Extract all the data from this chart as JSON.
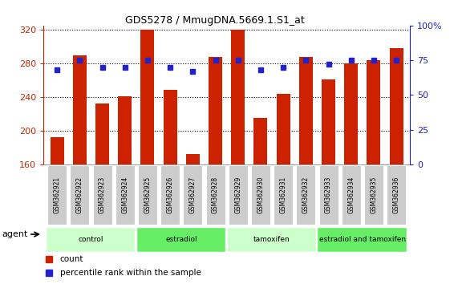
{
  "title": "GDS5278 / MmugDNA.5669.1.S1_at",
  "categories": [
    "GSM362921",
    "GSM362922",
    "GSM362923",
    "GSM362924",
    "GSM362925",
    "GSM362926",
    "GSM362927",
    "GSM362928",
    "GSM362929",
    "GSM362930",
    "GSM362931",
    "GSM362932",
    "GSM362933",
    "GSM362934",
    "GSM362935",
    "GSM362936"
  ],
  "count_values": [
    192,
    290,
    232,
    241,
    320,
    249,
    172,
    288,
    320,
    215,
    244,
    288,
    261,
    280,
    284,
    298
  ],
  "percentile_values": [
    68,
    75,
    70,
    70,
    75,
    70,
    67,
    75,
    75,
    68,
    70,
    75,
    72,
    75,
    75,
    75
  ],
  "ylim_left": [
    160,
    325
  ],
  "ylim_right": [
    0,
    100
  ],
  "yticks_left": [
    160,
    200,
    240,
    280,
    320
  ],
  "yticks_right": [
    0,
    25,
    50,
    75,
    100
  ],
  "bar_color": "#cc2200",
  "dot_color": "#2222cc",
  "groups": [
    {
      "label": "control",
      "start": 0,
      "end": 4,
      "color": "#ccffcc"
    },
    {
      "label": "estradiol",
      "start": 4,
      "end": 8,
      "color": "#66ee66"
    },
    {
      "label": "tamoxifen",
      "start": 8,
      "end": 12,
      "color": "#ccffcc"
    },
    {
      "label": "estradiol and tamoxifen",
      "start": 12,
      "end": 16,
      "color": "#66ee66"
    }
  ],
  "legend_count_label": "count",
  "legend_pct_label": "percentile rank within the sample",
  "agent_label": "agent",
  "background_color": "#ffffff",
  "sample_box_color": "#cccccc",
  "bar_bottom": 160
}
